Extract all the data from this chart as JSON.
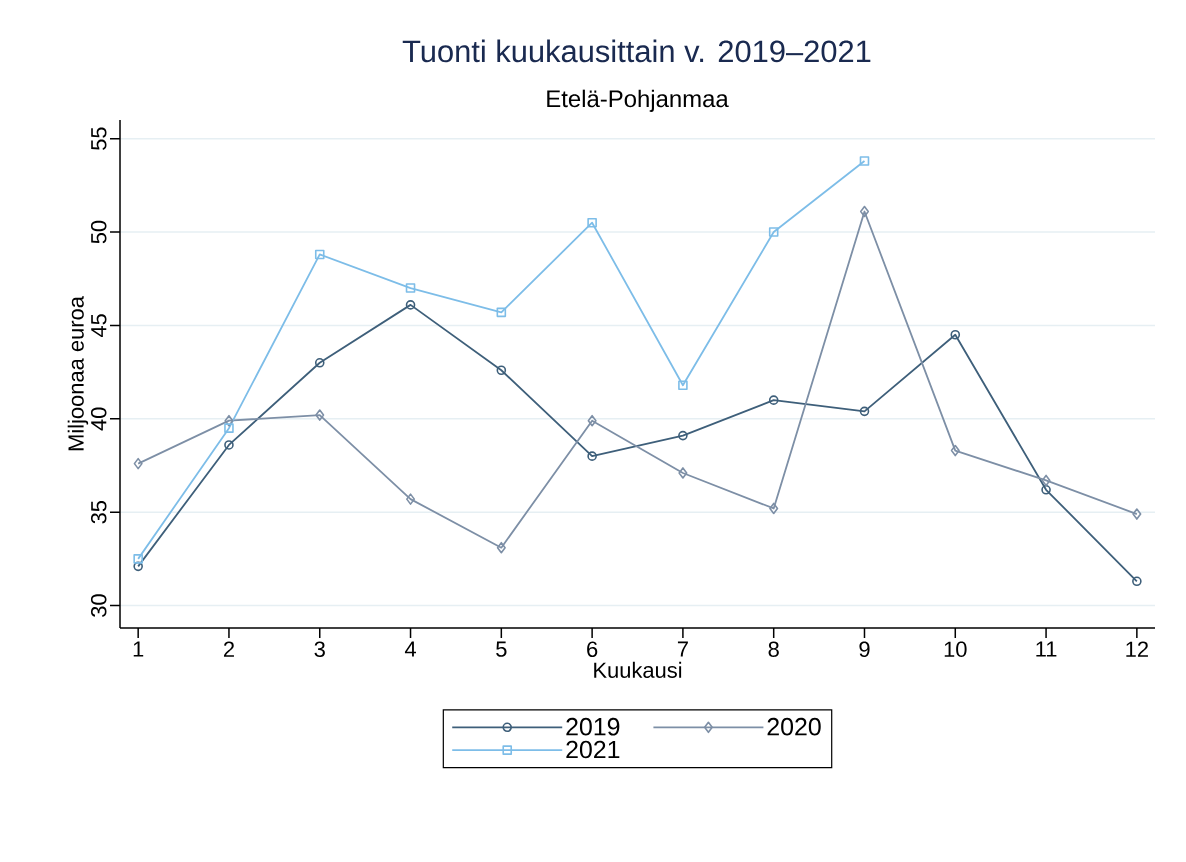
{
  "chart_data": {
    "type": "line",
    "title": "Tuonti kuukausittain v. 2019–2021",
    "subtitle": "Etelä-Pohjanmaa",
    "xlabel": "Kuukausi",
    "ylabel": "Miljoonaa euroa",
    "x": [
      1,
      2,
      3,
      4,
      5,
      6,
      7,
      8,
      9,
      10,
      11,
      12
    ],
    "xlim": [
      0.8,
      12.2
    ],
    "xticks": [
      1,
      2,
      3,
      4,
      5,
      6,
      7,
      8,
      9,
      10,
      11,
      12
    ],
    "ylim": [
      28.8,
      56
    ],
    "yticks": [
      30,
      35,
      40,
      45,
      50,
      55
    ],
    "grid": "y",
    "legend": "bottom",
    "line_style": "solid",
    "series": [
      {
        "name": "2019",
        "color": "#3e5f7a",
        "marker": "circle",
        "values": [
          32.1,
          38.6,
          43.0,
          46.1,
          42.6,
          38.0,
          39.1,
          41.0,
          40.4,
          44.5,
          36.2,
          31.3
        ]
      },
      {
        "name": "2020",
        "color": "#7d8fa6",
        "marker": "diamond",
        "values": [
          37.6,
          39.9,
          40.2,
          35.7,
          33.1,
          39.9,
          37.1,
          35.2,
          51.1,
          38.3,
          36.7,
          34.9
        ]
      },
      {
        "name": "2021",
        "color": "#7dbde8",
        "marker": "square",
        "values": [
          32.5,
          39.5,
          48.8,
          47.0,
          45.7,
          50.5,
          41.8,
          50.0,
          53.8,
          null,
          null,
          null
        ]
      }
    ]
  }
}
